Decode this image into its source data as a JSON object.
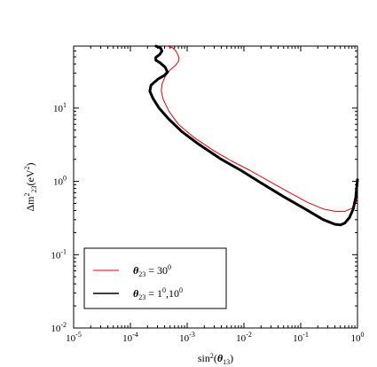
{
  "chart_data": {
    "type": "line",
    "xlabel": "sin²(θ₁₃)",
    "ylabel": "Δm²₂₃(eV²)",
    "xscale": "log",
    "yscale": "log",
    "xlim": [
      1e-05,
      1
    ],
    "ylim": [
      0.01,
      70
    ],
    "grid": false,
    "legend_position": "bottom-left",
    "x_ticks": [
      {
        "base": "10",
        "exp": "-5"
      },
      {
        "base": "10",
        "exp": "-4"
      },
      {
        "base": "10",
        "exp": "-3"
      },
      {
        "base": "10",
        "exp": "-2"
      },
      {
        "base": "10",
        "exp": "-1"
      },
      {
        "base": "10",
        "exp": "0"
      }
    ],
    "y_ticks": [
      {
        "base": "10",
        "exp": "-2"
      },
      {
        "base": "10",
        "exp": "-1"
      },
      {
        "base": "10",
        "exp": "0"
      },
      {
        "base": "10",
        "exp": "1"
      }
    ],
    "series": [
      {
        "name": "θ₂₃ = 30⁰",
        "color": "#e8000b",
        "width": 1,
        "points": [
          [
            0.000447,
            70
          ],
          [
            0.00056,
            66
          ],
          [
            0.00063,
            60
          ],
          [
            0.00068,
            54
          ],
          [
            0.00072,
            48
          ],
          [
            0.0007,
            43
          ],
          [
            0.00062,
            38
          ],
          [
            0.0005,
            33
          ],
          [
            0.00041,
            27
          ],
          [
            0.00036,
            21
          ],
          [
            0.00035,
            17
          ],
          [
            0.00038,
            13
          ],
          [
            0.00048,
            9
          ],
          [
            0.0007,
            6
          ],
          [
            0.0013,
            4
          ],
          [
            0.003,
            2.6
          ],
          [
            0.006,
            1.9
          ],
          [
            0.013,
            1.4
          ],
          [
            0.028,
            1.0
          ],
          [
            0.06,
            0.72
          ],
          [
            0.13,
            0.52
          ],
          [
            0.25,
            0.42
          ],
          [
            0.4,
            0.39
          ],
          [
            0.6,
            0.39
          ],
          [
            0.8,
            0.43
          ],
          [
            0.92,
            0.5
          ],
          [
            1.0,
            0.58
          ]
        ]
      },
      {
        "name": "θ₂₃ = 1⁰,10⁰",
        "color": "#000000",
        "width": 3,
        "points": [
          [
            0.000282,
            70
          ],
          [
            0.00034,
            66
          ],
          [
            0.00036,
            60
          ],
          [
            0.00033,
            54
          ],
          [
            0.00028,
            49
          ],
          [
            0.00028,
            45
          ],
          [
            0.00034,
            41
          ],
          [
            0.00041,
            36
          ],
          [
            0.00045,
            31
          ],
          [
            0.0004,
            28
          ],
          [
            0.00031,
            25
          ],
          [
            0.00023,
            20.5
          ],
          [
            0.00022,
            17
          ],
          [
            0.00025,
            13.5
          ],
          [
            0.00032,
            10
          ],
          [
            0.00048,
            7
          ],
          [
            0.0008,
            4.8
          ],
          [
            0.0016,
            3.2
          ],
          [
            0.004,
            2.0
          ],
          [
            0.009,
            1.4
          ],
          [
            0.02,
            0.95
          ],
          [
            0.05,
            0.62
          ],
          [
            0.12,
            0.42
          ],
          [
            0.25,
            0.3
          ],
          [
            0.4,
            0.26
          ],
          [
            0.5,
            0.255
          ],
          [
            0.6,
            0.27
          ],
          [
            0.72,
            0.32
          ],
          [
            0.84,
            0.42
          ],
          [
            0.93,
            0.6
          ],
          [
            1.0,
            1.05
          ]
        ]
      }
    ],
    "legend": [
      {
        "label_var": "θ",
        "label_sub": "23",
        "label_rest": " = 30",
        "label_sup": "0",
        "label_tail": "",
        "color": "#e8000b",
        "width": 1
      },
      {
        "label_var": "θ",
        "label_sub": "23",
        "label_rest": " = 1",
        "label_sup": "0",
        "label_tail": ",10",
        "label_sup2": "0",
        "color": "#000000",
        "width": 1.5
      }
    ]
  }
}
